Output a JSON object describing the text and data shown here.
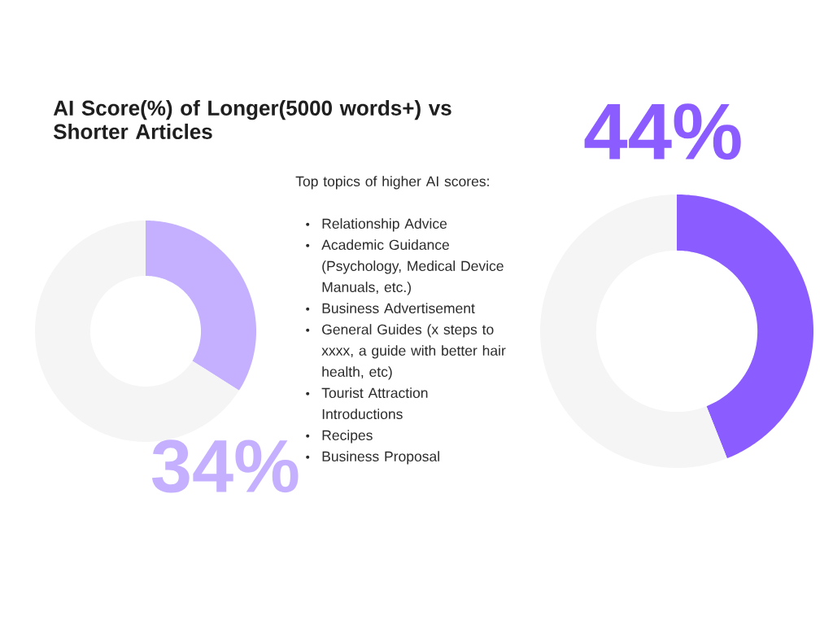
{
  "chart_data": [
    {
      "type": "donut",
      "title": "AI Score(%) of Longer(5000 words+) vs Shorter Articles",
      "categories": [
        null,
        null
      ],
      "values": [
        34,
        66
      ],
      "colors": [
        "#c4b0ff",
        "#f5f5f5"
      ],
      "value_labels": [
        "34%",
        null
      ]
    },
    {
      "type": "donut",
      "categories": [
        null,
        null
      ],
      "values": [
        44,
        56
      ],
      "colors": [
        "#8b5cff",
        "#f5f5f5"
      ],
      "value_labels": [
        "44%",
        null
      ]
    },
    {
      "type": "other",
      "title": "Top topics of higher AI scores:",
      "annotations": [
        "Relationship Advice",
        "Academic Guidance (Psychology, Medical Device Manuals, etc.)",
        "Business Advertisement",
        "General Guides (x steps to xxxx, a guide with better hair health, etc)",
        "Tourist Attraction Introductions",
        "Recipes",
        "Business Proposal"
      ]
    }
  ]
}
